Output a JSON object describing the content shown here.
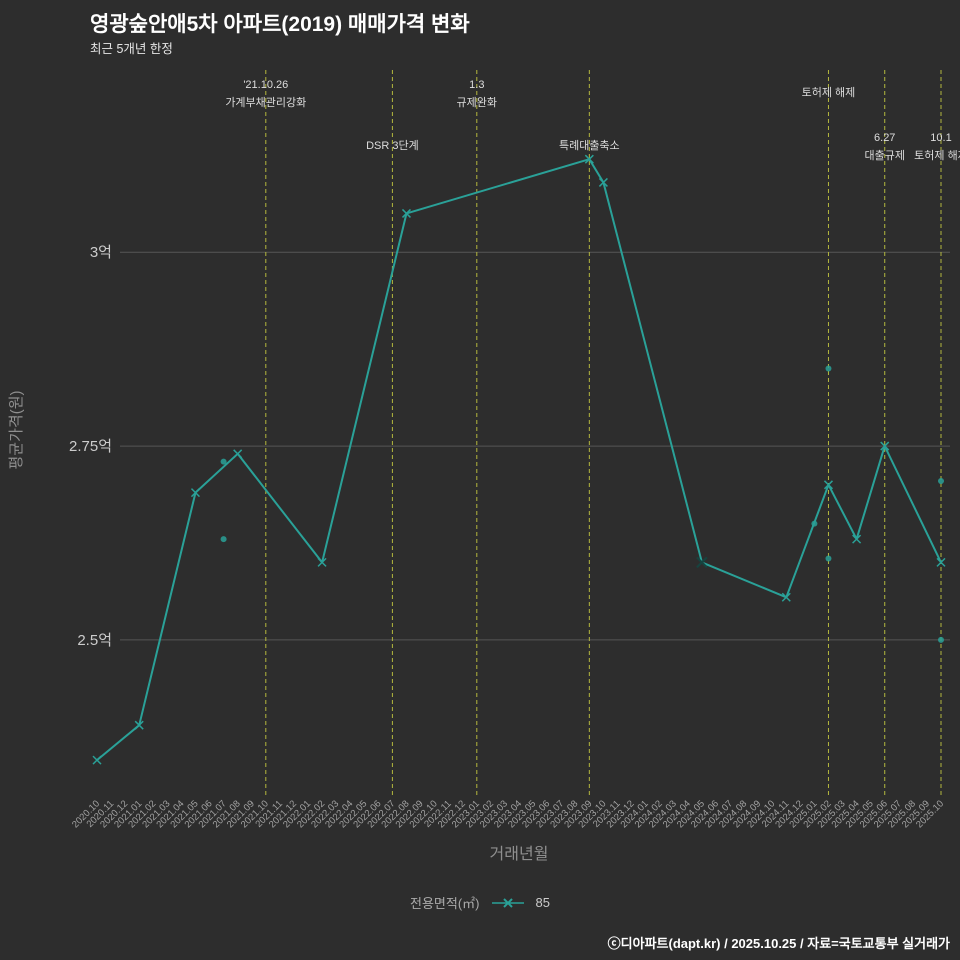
{
  "title": "영광숲안애5차 아파트(2019) 매매가격 변화",
  "subtitle": "최근 5개년 한정",
  "footer": "ⓒ디아파트(dapt.kr) / 2025.10.25 / 자료=국토교통부 실거래가",
  "colors": {
    "background": "#2d2d2d",
    "line": "#2aa198",
    "annotation": "#b4b83e",
    "grid": "#565656",
    "tick_text": "#a3a3a3",
    "axis_text": "#8f8f8f",
    "ytick_text": "#cccccc",
    "annotation_text": "#dddddd",
    "highlight": "#17433f"
  },
  "chart_data": {
    "type": "line",
    "title": "영광숲안애5차 아파트(2019) 매매가격 변화",
    "subtitle": "최근 5개년 한정",
    "xlabel": "거래년월",
    "ylabel": "평균가격(원)",
    "ylim": [
      2.3,
      3.235
    ],
    "grid": "horizontal",
    "legend_position": "bottom",
    "y_ticks": [
      {
        "value": 3.0,
        "label": "3억"
      },
      {
        "value": 2.75,
        "label": "2.75억"
      },
      {
        "value": 2.5,
        "label": "2.5억"
      }
    ],
    "x_categories": [
      "2020.10",
      "2020.11",
      "2020.12",
      "2021.01",
      "2021.02",
      "2021.03",
      "2021.04",
      "2021.05",
      "2021.06",
      "2021.07",
      "2021.08",
      "2021.09",
      "2021.10",
      "2021.11",
      "2021.12",
      "2022.01",
      "2022.02",
      "2022.03",
      "2022.04",
      "2022.05",
      "2022.06",
      "2022.07",
      "2022.08",
      "2022.09",
      "2022.10",
      "2022.11",
      "2022.12",
      "2023.01",
      "2023.02",
      "2023.03",
      "2023.04",
      "2023.05",
      "2023.06",
      "2023.07",
      "2023.08",
      "2023.09",
      "2023.10",
      "2023.11",
      "2023.12",
      "2024.01",
      "2024.02",
      "2024.03",
      "2024.04",
      "2024.05",
      "2024.06",
      "2024.07",
      "2024.08",
      "2024.09",
      "2024.10",
      "2024.11",
      "2024.12",
      "2025.01",
      "2025.02",
      "2025.03",
      "2025.04",
      "2025.05",
      "2025.06",
      "2025.07",
      "2025.08",
      "2025.09",
      "2025.10"
    ],
    "series": [
      {
        "name": "85",
        "marker": "x",
        "points": [
          {
            "x": "2020.10",
            "y": 2.345
          },
          {
            "x": "2021.01",
            "y": 2.39
          },
          {
            "x": "2021.05",
            "y": 2.69
          },
          {
            "x": "2021.08",
            "y": 2.74
          },
          {
            "x": "2022.02",
            "y": 2.6
          },
          {
            "x": "2022.08",
            "y": 3.05
          },
          {
            "x": "2023.09",
            "y": 3.12
          },
          {
            "x": "2023.10",
            "y": 3.09
          },
          {
            "x": "2024.05",
            "y": 2.6
          },
          {
            "x": "2024.11",
            "y": 2.555
          },
          {
            "x": "2025.02",
            "y": 2.7
          },
          {
            "x": "2025.04",
            "y": 2.63
          },
          {
            "x": "2025.06",
            "y": 2.75
          },
          {
            "x": "2025.10",
            "y": 2.6
          }
        ]
      }
    ],
    "extra_points": [
      {
        "x": "2021.07",
        "y": 2.73
      },
      {
        "x": "2021.07",
        "y": 2.63
      },
      {
        "x": "2025.01",
        "y": 2.65
      },
      {
        "x": "2025.02",
        "y": 2.85
      },
      {
        "x": "2025.02",
        "y": 2.605
      },
      {
        "x": "2025.10",
        "y": 2.705
      },
      {
        "x": "2025.10",
        "y": 2.5
      }
    ],
    "highlight_point": {
      "x": "2024.05",
      "y": 2.6
    },
    "annotations": [
      {
        "x": "2021.10",
        "lines": [
          "'21.10.26",
          "가계부채관리강화"
        ],
        "row": 0
      },
      {
        "x": "2022.07",
        "lines": [
          "DSR 3단계"
        ],
        "row": 1
      },
      {
        "x": "2023.01",
        "lines": [
          "1.3",
          "규제완화"
        ],
        "row": 0
      },
      {
        "x": "2023.09",
        "lines": [
          "특례대출축소"
        ],
        "row": 1
      },
      {
        "x": "2025.02",
        "lines": [
          "토허제 해제"
        ],
        "row": 0
      },
      {
        "x": "2025.06",
        "lines": [
          "6.27",
          "대출규제"
        ],
        "row": 1
      },
      {
        "x": "2025.10",
        "lines": [
          "10.1",
          "토허제 해제"
        ],
        "row": 1
      }
    ],
    "legend": {
      "label": "전용면적(㎡)",
      "series_label": "85"
    }
  }
}
